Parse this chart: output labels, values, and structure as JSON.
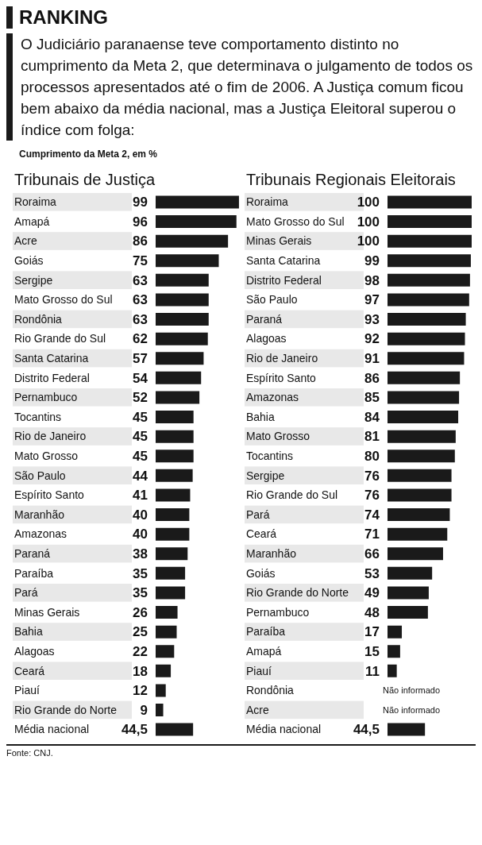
{
  "chart_data": [
    {
      "type": "bar",
      "orientation": "horizontal",
      "title": "Tribunais de Justiça",
      "annotations": [
        "RANKING",
        "O Judiciário paranaense teve comportamento distinto no cumprimento da Meta 2, que determinava o julgamento de todos os processos apresentados até o fim de 2006. A Justiça comum ficou bem abaixo da média nacional, mas a Justiça Eleitoral superou o índice com folga:",
        "Cumprimento da Meta 2, em %",
        "Fonte: CNJ."
      ],
      "categories": [
        "Roraima",
        "Amapá",
        "Acre",
        "Goiás",
        "Sergipe",
        "Mato Grosso do Sul",
        "Rondônia",
        "Rio Grande do Sul",
        "Santa Catarina",
        "Distrito Federal",
        "Pernambuco",
        "Tocantins",
        "Rio de Janeiro",
        "Mato Grosso",
        "São Paulo",
        "Espírito Santo",
        "Maranhão",
        "Amazonas",
        "Paraná",
        "Paraíba",
        "Pará",
        "Minas Gerais",
        "Bahia",
        "Alagoas",
        "Ceará",
        "Piauí",
        "Rio Grande do Norte",
        "Média nacional"
      ],
      "values": [
        99,
        96,
        86,
        75,
        63,
        63,
        63,
        62,
        57,
        54,
        52,
        45,
        45,
        45,
        44,
        41,
        40,
        40,
        38,
        35,
        35,
        26,
        25,
        22,
        18,
        12,
        9,
        44.5
      ],
      "value_labels": [
        "99",
        "96",
        "86",
        "75",
        "63",
        "63",
        "63",
        "62",
        "57",
        "54",
        "52",
        "45",
        "45",
        "45",
        "44",
        "41",
        "40",
        "40",
        "38",
        "35",
        "35",
        "26",
        "25",
        "22",
        "18",
        "12",
        "9",
        "44,5"
      ],
      "color": "#1a1a1a",
      "xlim": [
        0,
        100
      ],
      "tick_labels": "y"
    },
    {
      "type": "bar",
      "orientation": "horizontal",
      "title": "Tribunais Regionais Eleitorais",
      "categories": [
        "Roraima",
        "Mato Grosso do Sul",
        "Minas Gerais",
        "Santa Catarina",
        "Distrito Federal",
        "São Paulo",
        "Paraná",
        "Alagoas",
        "Rio de Janeiro",
        "Espírito Santo",
        "Amazonas",
        "Bahia",
        "Mato Grosso",
        "Tocantins",
        "Sergipe",
        "Rio Grande do Sul",
        "Pará",
        "Ceará",
        "Maranhão",
        "Goiás",
        "Rio Grande do Norte",
        "Pernambuco",
        "Paraíba",
        "Amapá",
        "Piauí",
        "Rondônia",
        "Acre",
        "Média nacional"
      ],
      "values": [
        100,
        100,
        100,
        99,
        98,
        97,
        93,
        92,
        91,
        86,
        85,
        84,
        81,
        80,
        76,
        76,
        74,
        71,
        66,
        53,
        49,
        48,
        17,
        15,
        11,
        null,
        null,
        44.5
      ],
      "value_labels": [
        "100",
        "100",
        "100",
        "99",
        "98",
        "97",
        "93",
        "92",
        "91",
        "86",
        "85",
        "84",
        "81",
        "80",
        "76",
        "76",
        "74",
        "71",
        "66",
        "53",
        "49",
        "48",
        "17",
        "15",
        "11",
        "Não informado",
        "Não informado",
        "44,5"
      ],
      "color": "#1a1a1a",
      "xlim": [
        0,
        100
      ],
      "tick_labels": "y"
    }
  ]
}
